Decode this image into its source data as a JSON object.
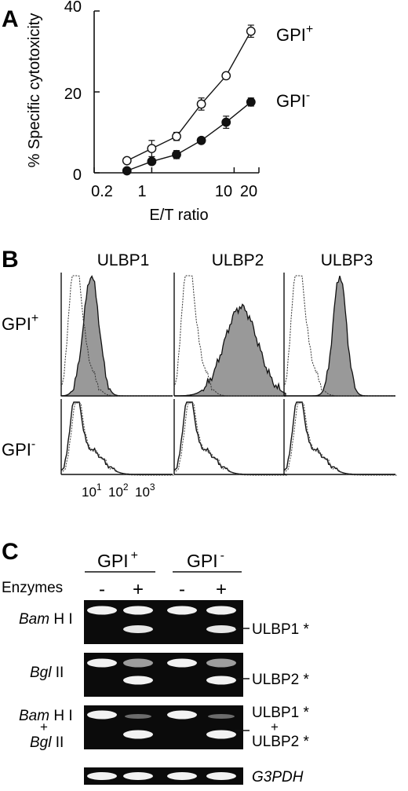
{
  "panel_a": {
    "label": "A",
    "ylabel": "% Specific cytotoxicity",
    "xlabel": "E/T ratio",
    "yticks": [
      "0",
      "20",
      "40"
    ],
    "xticks": [
      "0.2",
      "1",
      "10",
      "20"
    ],
    "series_labels": {
      "plus_main": "GPI",
      "plus_sup": "+",
      "minus_main": "GPI",
      "minus_sup": "-"
    }
  },
  "chart_data": {
    "type": "scatter",
    "xlabel": "E/T ratio",
    "ylabel": "% Specific cytotoxicity",
    "xscale": "log",
    "xlim": [
      0.2,
      20
    ],
    "ylim": [
      0,
      40
    ],
    "series": [
      {
        "name": "GPI+",
        "marker": "open-circle",
        "x": [
          0.5,
          1,
          2,
          4,
          8,
          16
        ],
        "y": [
          3,
          6,
          9,
          17,
          24,
          35
        ],
        "err": [
          0.5,
          2,
          1,
          1.5,
          0.5,
          1.5
        ]
      },
      {
        "name": "GPI-",
        "marker": "filled-circle",
        "x": [
          0.5,
          1,
          2,
          4,
          8,
          16
        ],
        "y": [
          0.5,
          2.8,
          4.5,
          8,
          12.5,
          17.5
        ],
        "err": [
          0.5,
          0.5,
          1,
          0.5,
          1.5,
          1
        ]
      }
    ]
  },
  "panel_b": {
    "label": "B",
    "columns": [
      "ULBP1",
      "ULBP2",
      "ULBP3"
    ],
    "row_plus_main": "GPI",
    "row_plus_sup": "+",
    "row_minus_main": "GPI",
    "row_minus_sup": "-",
    "xtick_base": "10",
    "xtick_exps": [
      "1",
      "2",
      "3"
    ]
  },
  "panel_c": {
    "label": "C",
    "group_plus_main": "GPI",
    "group_plus_sup": "+",
    "group_minus_main": "GPI",
    "group_minus_sup": "-",
    "enzymes_label": "Enzymes",
    "lane_signs": [
      "-",
      "+",
      "-",
      "+"
    ],
    "rows": [
      {
        "italic": "Bam",
        "rest": " H I"
      },
      {
        "italic": "Bgl",
        "rest": " II"
      }
    ],
    "combo": {
      "top_italic": "Bam",
      "top_rest": " H I",
      "plus": "+",
      "bottom_italic": "Bgl",
      "bottom_rest": " II"
    },
    "right_labels": {
      "ulbp1": "ULBP1 *",
      "ulbp2": "ULBP2 *",
      "combo_top": "ULBP1 *",
      "combo_plus": "+",
      "combo_bottom": "ULBP2 *",
      "gapdh": "G3PDH"
    }
  }
}
